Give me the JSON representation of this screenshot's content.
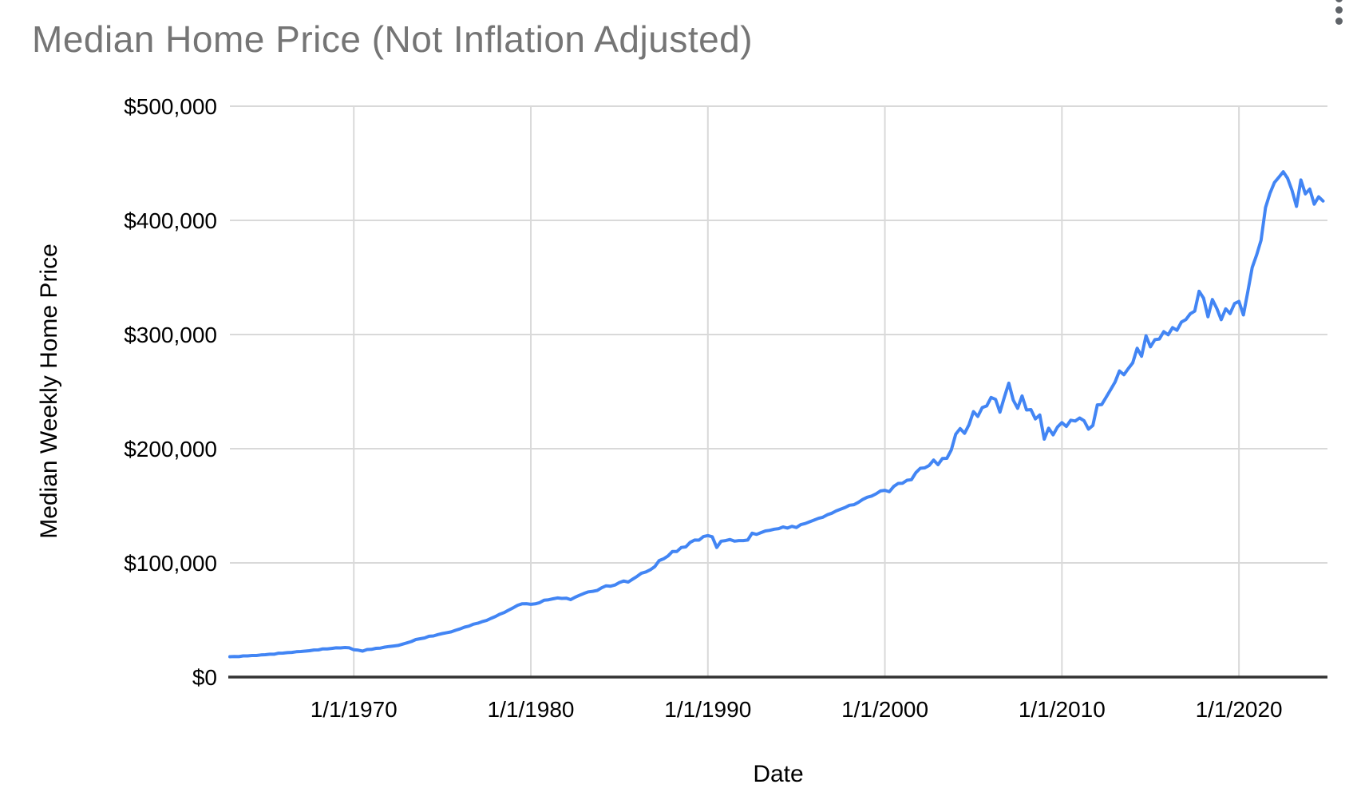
{
  "chart": {
    "title": "Median Home Price (Not Inflation Adjusted)",
    "menu_icon": "more-vert"
  },
  "colors": {
    "line": "#4285f4",
    "title_text": "#757575",
    "axis_text": "#000000",
    "gridline": "#d9d9d9",
    "axis_line": "#333333",
    "menu_dots": "#5f6368"
  },
  "chart_data": {
    "type": "line",
    "title": "Median Home Price (Not Inflation Adjusted)",
    "xlabel": "Date",
    "ylabel": "Median Weekly Home Price",
    "legend": "none",
    "grid": true,
    "x_axis": {
      "min": 1963,
      "max": 2025,
      "ticks": [
        {
          "value": 1970,
          "label": "1/1/1970"
        },
        {
          "value": 1980,
          "label": "1/1/1980"
        },
        {
          "value": 1990,
          "label": "1/1/1990"
        },
        {
          "value": 2000,
          "label": "1/1/2000"
        },
        {
          "value": 2010,
          "label": "1/1/2010"
        },
        {
          "value": 2020,
          "label": "1/1/2020"
        }
      ]
    },
    "y_axis": {
      "min": 0,
      "max": 500000,
      "ticks": [
        {
          "value": 0,
          "label": "$0"
        },
        {
          "value": 100000,
          "label": "$100,000"
        },
        {
          "value": 200000,
          "label": "$200,000"
        },
        {
          "value": 300000,
          "label": "$300,000"
        },
        {
          "value": 400000,
          "label": "$400,000"
        },
        {
          "value": 500000,
          "label": "$500,000"
        }
      ]
    },
    "line_color": "#4285f4",
    "points": [
      [
        1963,
        17800
      ],
      [
        1963.25,
        18000
      ],
      [
        1963.5,
        17900
      ],
      [
        1963.75,
        18500
      ],
      [
        1964,
        18500
      ],
      [
        1964.25,
        18900
      ],
      [
        1964.5,
        18900
      ],
      [
        1964.75,
        19400
      ],
      [
        1965,
        19600
      ],
      [
        1965.25,
        20000
      ],
      [
        1965.5,
        20000
      ],
      [
        1965.75,
        20900
      ],
      [
        1966,
        21000
      ],
      [
        1966.25,
        21400
      ],
      [
        1966.5,
        21600
      ],
      [
        1966.75,
        22200
      ],
      [
        1967,
        22400
      ],
      [
        1967.25,
        22700
      ],
      [
        1967.5,
        23100
      ],
      [
        1967.75,
        23700
      ],
      [
        1968,
        23800
      ],
      [
        1968.25,
        24700
      ],
      [
        1968.5,
        24700
      ],
      [
        1968.75,
        25100
      ],
      [
        1969,
        25600
      ],
      [
        1969.25,
        25500
      ],
      [
        1969.5,
        25900
      ],
      [
        1969.75,
        25600
      ],
      [
        1970,
        23900
      ],
      [
        1970.25,
        23600
      ],
      [
        1970.5,
        22700
      ],
      [
        1970.75,
        24100
      ],
      [
        1971,
        24300
      ],
      [
        1971.25,
        25200
      ],
      [
        1971.5,
        25400
      ],
      [
        1971.75,
        26200
      ],
      [
        1972,
        26800
      ],
      [
        1972.25,
        27200
      ],
      [
        1972.5,
        27700
      ],
      [
        1972.75,
        28800
      ],
      [
        1973,
        29900
      ],
      [
        1973.25,
        31100
      ],
      [
        1973.5,
        32900
      ],
      [
        1973.75,
        33600
      ],
      [
        1974,
        34300
      ],
      [
        1974.25,
        35700
      ],
      [
        1974.5,
        36000
      ],
      [
        1974.75,
        37200
      ],
      [
        1975,
        38100
      ],
      [
        1975.25,
        38900
      ],
      [
        1975.5,
        39600
      ],
      [
        1975.75,
        41000
      ],
      [
        1976,
        42200
      ],
      [
        1976.25,
        43700
      ],
      [
        1976.5,
        44600
      ],
      [
        1976.75,
        46300
      ],
      [
        1977,
        47100
      ],
      [
        1977.25,
        48500
      ],
      [
        1977.5,
        49600
      ],
      [
        1977.75,
        51400
      ],
      [
        1978,
        53100
      ],
      [
        1978.25,
        55100
      ],
      [
        1978.5,
        56600
      ],
      [
        1978.75,
        58700
      ],
      [
        1979,
        60600
      ],
      [
        1979.25,
        62900
      ],
      [
        1979.5,
        64100
      ],
      [
        1979.75,
        64300
      ],
      [
        1980,
        63700
      ],
      [
        1980.25,
        64100
      ],
      [
        1980.5,
        65200
      ],
      [
        1980.75,
        67300
      ],
      [
        1981,
        67700
      ],
      [
        1981.25,
        68500
      ],
      [
        1981.5,
        69300
      ],
      [
        1981.75,
        68900
      ],
      [
        1982,
        69100
      ],
      [
        1982.25,
        67800
      ],
      [
        1982.5,
        69900
      ],
      [
        1982.75,
        71600
      ],
      [
        1983,
        73200
      ],
      [
        1983.25,
        74600
      ],
      [
        1983.5,
        75100
      ],
      [
        1983.75,
        75900
      ],
      [
        1984,
        78200
      ],
      [
        1984.25,
        79900
      ],
      [
        1984.5,
        79600
      ],
      [
        1984.75,
        80600
      ],
      [
        1985,
        82800
      ],
      [
        1985.25,
        84100
      ],
      [
        1985.5,
        83200
      ],
      [
        1985.75,
        85700
      ],
      [
        1986,
        88200
      ],
      [
        1986.25,
        91000
      ],
      [
        1986.5,
        92100
      ],
      [
        1986.75,
        94000
      ],
      [
        1987,
        96700
      ],
      [
        1987.25,
        102000
      ],
      [
        1987.5,
        103600
      ],
      [
        1987.75,
        106100
      ],
      [
        1988,
        110000
      ],
      [
        1988.25,
        110000
      ],
      [
        1988.5,
        113500
      ],
      [
        1988.75,
        114000
      ],
      [
        1989,
        118000
      ],
      [
        1989.25,
        120000
      ],
      [
        1989.5,
        119900
      ],
      [
        1989.75,
        123000
      ],
      [
        1990,
        123900
      ],
      [
        1990.25,
        122900
      ],
      [
        1990.5,
        113500
      ],
      [
        1990.75,
        119000
      ],
      [
        1991,
        119500
      ],
      [
        1991.25,
        120500
      ],
      [
        1991.5,
        119000
      ],
      [
        1991.75,
        119500
      ],
      [
        1992,
        119500
      ],
      [
        1992.25,
        120000
      ],
      [
        1992.5,
        126000
      ],
      [
        1992.75,
        125000
      ],
      [
        1993,
        126500
      ],
      [
        1993.25,
        128000
      ],
      [
        1993.5,
        128500
      ],
      [
        1993.75,
        129500
      ],
      [
        1994,
        130000
      ],
      [
        1994.25,
        131500
      ],
      [
        1994.5,
        130500
      ],
      [
        1994.75,
        132000
      ],
      [
        1995,
        131000
      ],
      [
        1995.25,
        133500
      ],
      [
        1995.5,
        134500
      ],
      [
        1995.75,
        136000
      ],
      [
        1996,
        137500
      ],
      [
        1996.25,
        139000
      ],
      [
        1996.5,
        140000
      ],
      [
        1996.75,
        142200
      ],
      [
        1997,
        143500
      ],
      [
        1997.25,
        145500
      ],
      [
        1997.5,
        147000
      ],
      [
        1997.75,
        148500
      ],
      [
        1998,
        150500
      ],
      [
        1998.25,
        151000
      ],
      [
        1998.5,
        153000
      ],
      [
        1998.75,
        155500
      ],
      [
        1999,
        157500
      ],
      [
        1999.25,
        158500
      ],
      [
        1999.5,
        160500
      ],
      [
        1999.75,
        163000
      ],
      [
        2000,
        163600
      ],
      [
        2000.25,
        162300
      ],
      [
        2000.5,
        167000
      ],
      [
        2000.75,
        169600
      ],
      [
        2001,
        169800
      ],
      [
        2001.25,
        172400
      ],
      [
        2001.5,
        172900
      ],
      [
        2001.75,
        179100
      ],
      [
        2002,
        182900
      ],
      [
        2002.25,
        183200
      ],
      [
        2002.5,
        185300
      ],
      [
        2002.75,
        190100
      ],
      [
        2003,
        186000
      ],
      [
        2003.25,
        191400
      ],
      [
        2003.5,
        191600
      ],
      [
        2003.75,
        198800
      ],
      [
        2004,
        212700
      ],
      [
        2004.25,
        217600
      ],
      [
        2004.5,
        213500
      ],
      [
        2004.75,
        221000
      ],
      [
        2005,
        232500
      ],
      [
        2005.25,
        228300
      ],
      [
        2005.5,
        236000
      ],
      [
        2005.75,
        237500
      ],
      [
        2006,
        244900
      ],
      [
        2006.25,
        243200
      ],
      [
        2006.5,
        232000
      ],
      [
        2006.75,
        245300
      ],
      [
        2007,
        257400
      ],
      [
        2007.25,
        242500
      ],
      [
        2007.5,
        235400
      ],
      [
        2007.75,
        246200
      ],
      [
        2008,
        233900
      ],
      [
        2008.25,
        234300
      ],
      [
        2008.5,
        226100
      ],
      [
        2008.75,
        229600
      ],
      [
        2009,
        208400
      ],
      [
        2009.25,
        218000
      ],
      [
        2009.5,
        212200
      ],
      [
        2009.75,
        219000
      ],
      [
        2010,
        222900
      ],
      [
        2010.25,
        219500
      ],
      [
        2010.5,
        225000
      ],
      [
        2010.75,
        224300
      ],
      [
        2011,
        226900
      ],
      [
        2011.25,
        224500
      ],
      [
        2011.5,
        217100
      ],
      [
        2011.75,
        220400
      ],
      [
        2012,
        238400
      ],
      [
        2012.25,
        238700
      ],
      [
        2012.5,
        245200
      ],
      [
        2012.75,
        251700
      ],
      [
        2013,
        258400
      ],
      [
        2013.25,
        268100
      ],
      [
        2013.5,
        264800
      ],
      [
        2013.75,
        270200
      ],
      [
        2014,
        275200
      ],
      [
        2014.25,
        288000
      ],
      [
        2014.5,
        281000
      ],
      [
        2014.75,
        298900
      ],
      [
        2015,
        289200
      ],
      [
        2015.25,
        295500
      ],
      [
        2015.5,
        296000
      ],
      [
        2015.75,
        302500
      ],
      [
        2016,
        299800
      ],
      [
        2016.25,
        306000
      ],
      [
        2016.5,
        303800
      ],
      [
        2016.75,
        310900
      ],
      [
        2017,
        313100
      ],
      [
        2017.25,
        318200
      ],
      [
        2017.5,
        320500
      ],
      [
        2017.75,
        337900
      ],
      [
        2018,
        331800
      ],
      [
        2018.25,
        315600
      ],
      [
        2018.5,
        330600
      ],
      [
        2018.75,
        322800
      ],
      [
        2019,
        313000
      ],
      [
        2019.25,
        322500
      ],
      [
        2019.5,
        318400
      ],
      [
        2019.75,
        327100
      ],
      [
        2020,
        329000
      ],
      [
        2020.25,
        317100
      ],
      [
        2020.5,
        337500
      ],
      [
        2020.75,
        358700
      ],
      [
        2021,
        369800
      ],
      [
        2021.25,
        382600
      ],
      [
        2021.5,
        411200
      ],
      [
        2021.75,
        423600
      ],
      [
        2022,
        433100
      ],
      [
        2022.25,
        437700
      ],
      [
        2022.5,
        442600
      ],
      [
        2022.75,
        436800
      ],
      [
        2023,
        426200
      ],
      [
        2023.25,
        412300
      ],
      [
        2023.5,
        435400
      ],
      [
        2023.75,
        423200
      ],
      [
        2024,
        427400
      ],
      [
        2024.25,
        414200
      ],
      [
        2024.5,
        420600
      ],
      [
        2024.75,
        416900
      ]
    ]
  }
}
